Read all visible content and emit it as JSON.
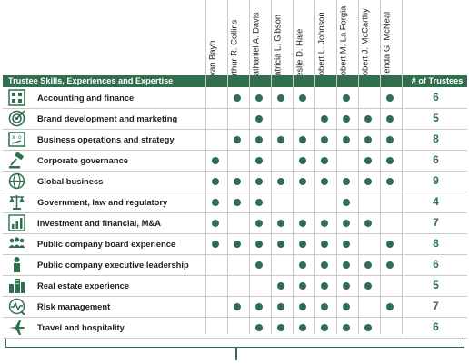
{
  "header": {
    "skills_title": "Trustee Skills, Experiences and Expertise",
    "count_title": "# of Trustees"
  },
  "trustees": [
    "Evan Bayh",
    "Arthur R. Collins",
    "Nathaniel A. Davis",
    "Patricia L. Gibson",
    "Leslie D. Hale",
    "Robert L. Johnson",
    "Robert M. La Forgia",
    "Robert J. McCarthy",
    "Glenda G. McNeal"
  ],
  "colors": {
    "accent": "#2f6f4e",
    "grid": "#c9c9c9"
  },
  "rows": [
    {
      "icon": "calculator-icon",
      "label": "Accounting and finance",
      "count": "6",
      "marks": [
        0,
        1,
        1,
        1,
        1,
        0,
        1,
        0,
        1
      ]
    },
    {
      "icon": "target-icon",
      "label": "Brand development and marketing",
      "count": "5",
      "marks": [
        0,
        0,
        1,
        0,
        0,
        1,
        1,
        1,
        1
      ]
    },
    {
      "icon": "strategy-board-icon",
      "label": "Business operations and strategy",
      "count": "8",
      "marks": [
        0,
        1,
        1,
        1,
        1,
        1,
        1,
        1,
        1
      ]
    },
    {
      "icon": "gavel-icon",
      "label": "Corporate governance",
      "count": "6",
      "marks": [
        1,
        0,
        1,
        0,
        1,
        1,
        0,
        1,
        1
      ]
    },
    {
      "icon": "globe-icon",
      "label": "Global business",
      "count": "9",
      "marks": [
        1,
        1,
        1,
        1,
        1,
        1,
        1,
        1,
        1
      ]
    },
    {
      "icon": "scales-icon",
      "label": "Government, law and regulatory",
      "count": "4",
      "marks": [
        1,
        1,
        1,
        0,
        0,
        0,
        1,
        0,
        0
      ]
    },
    {
      "icon": "bar-chart-icon",
      "label": "Investment and financial, M&A",
      "count": "7",
      "marks": [
        1,
        0,
        1,
        1,
        1,
        1,
        1,
        1,
        0
      ]
    },
    {
      "icon": "people-icon",
      "label": "Public company board experience",
      "count": "8",
      "marks": [
        1,
        1,
        1,
        1,
        1,
        1,
        1,
        0,
        1
      ]
    },
    {
      "icon": "executive-icon",
      "label": "Public company executive leadership",
      "count": "6",
      "marks": [
        0,
        0,
        1,
        0,
        1,
        1,
        1,
        1,
        1
      ]
    },
    {
      "icon": "buildings-icon",
      "label": "Real estate experience",
      "count": "5",
      "marks": [
        0,
        0,
        0,
        1,
        1,
        1,
        1,
        1,
        0
      ]
    },
    {
      "icon": "risk-monitor-icon",
      "label": "Risk management",
      "count": "7",
      "marks": [
        0,
        1,
        1,
        1,
        1,
        1,
        1,
        0,
        1
      ]
    },
    {
      "icon": "airplane-icon",
      "label": "Travel and hospitality",
      "count": "6",
      "marks": [
        0,
        0,
        1,
        1,
        1,
        1,
        1,
        1,
        0
      ]
    }
  ]
}
